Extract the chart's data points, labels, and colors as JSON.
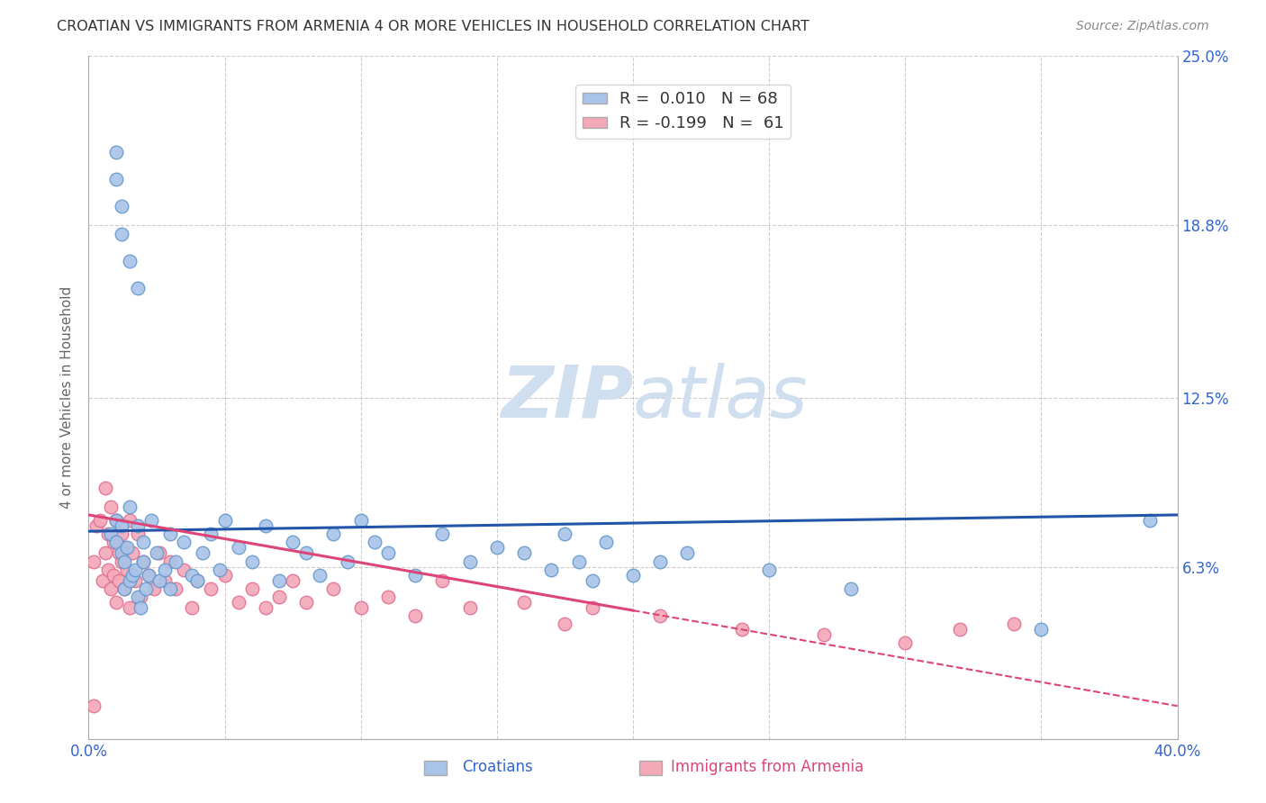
{
  "title": "CROATIAN VS IMMIGRANTS FROM ARMENIA 4 OR MORE VEHICLES IN HOUSEHOLD CORRELATION CHART",
  "source": "Source: ZipAtlas.com",
  "ylabel": "4 or more Vehicles in Household",
  "xlim": [
    0.0,
    0.4
  ],
  "ylim": [
    0.0,
    0.25
  ],
  "blue_color": "#a8c4e8",
  "blue_edge_color": "#6699cc",
  "pink_color": "#f4a8b8",
  "pink_edge_color": "#e07090",
  "blue_line_color": "#2255aa",
  "pink_line_color": "#dd4477",
  "background_color": "#ffffff",
  "grid_color": "#cccccc",
  "watermark_color": "#d0dff0",
  "title_color": "#333333",
  "axis_label_color": "#3366cc",
  "ylabel_color": "#666666",
  "source_color": "#888888",
  "ytick_vals": [
    0.0,
    0.063,
    0.125,
    0.188,
    0.25
  ],
  "ytick_labels": [
    "",
    "6.3%",
    "12.5%",
    "18.8%",
    "25.0%"
  ],
  "blue_r": 0.01,
  "blue_n": 68,
  "pink_r": -0.199,
  "pink_n": 61,
  "croatians_x": [
    0.008,
    0.01,
    0.01,
    0.012,
    0.012,
    0.013,
    0.013,
    0.014,
    0.015,
    0.015,
    0.016,
    0.017,
    0.018,
    0.018,
    0.019,
    0.02,
    0.02,
    0.021,
    0.022,
    0.023,
    0.025,
    0.026,
    0.028,
    0.03,
    0.03,
    0.032,
    0.035,
    0.038,
    0.04,
    0.042,
    0.045,
    0.048,
    0.05,
    0.055,
    0.06,
    0.065,
    0.07,
    0.075,
    0.08,
    0.085,
    0.09,
    0.095,
    0.1,
    0.105,
    0.11,
    0.12,
    0.13,
    0.14,
    0.15,
    0.16,
    0.17,
    0.175,
    0.18,
    0.185,
    0.19,
    0.2,
    0.21,
    0.22,
    0.25,
    0.28,
    0.01,
    0.01,
    0.012,
    0.012,
    0.015,
    0.018,
    0.35,
    0.39
  ],
  "croatians_y": [
    0.075,
    0.072,
    0.08,
    0.078,
    0.068,
    0.065,
    0.055,
    0.07,
    0.058,
    0.085,
    0.06,
    0.062,
    0.052,
    0.078,
    0.048,
    0.072,
    0.065,
    0.055,
    0.06,
    0.08,
    0.068,
    0.058,
    0.062,
    0.075,
    0.055,
    0.065,
    0.072,
    0.06,
    0.058,
    0.068,
    0.075,
    0.062,
    0.08,
    0.07,
    0.065,
    0.078,
    0.058,
    0.072,
    0.068,
    0.06,
    0.075,
    0.065,
    0.08,
    0.072,
    0.068,
    0.06,
    0.075,
    0.065,
    0.07,
    0.068,
    0.062,
    0.075,
    0.065,
    0.058,
    0.072,
    0.06,
    0.065,
    0.068,
    0.062,
    0.055,
    0.215,
    0.205,
    0.195,
    0.185,
    0.175,
    0.165,
    0.04,
    0.08
  ],
  "armenia_x": [
    0.002,
    0.003,
    0.004,
    0.005,
    0.006,
    0.006,
    0.007,
    0.007,
    0.008,
    0.008,
    0.009,
    0.009,
    0.01,
    0.01,
    0.011,
    0.011,
    0.012,
    0.012,
    0.013,
    0.013,
    0.014,
    0.015,
    0.015,
    0.016,
    0.017,
    0.018,
    0.019,
    0.02,
    0.022,
    0.024,
    0.026,
    0.028,
    0.03,
    0.032,
    0.035,
    0.038,
    0.04,
    0.045,
    0.05,
    0.055,
    0.06,
    0.065,
    0.07,
    0.075,
    0.08,
    0.09,
    0.1,
    0.11,
    0.12,
    0.13,
    0.14,
    0.16,
    0.175,
    0.185,
    0.21,
    0.24,
    0.27,
    0.3,
    0.32,
    0.34,
    0.002
  ],
  "armenia_y": [
    0.065,
    0.078,
    0.08,
    0.058,
    0.068,
    0.092,
    0.062,
    0.075,
    0.055,
    0.085,
    0.06,
    0.072,
    0.05,
    0.08,
    0.068,
    0.058,
    0.065,
    0.075,
    0.055,
    0.07,
    0.062,
    0.048,
    0.08,
    0.068,
    0.058,
    0.075,
    0.052,
    0.065,
    0.06,
    0.055,
    0.068,
    0.058,
    0.065,
    0.055,
    0.062,
    0.048,
    0.058,
    0.055,
    0.06,
    0.05,
    0.055,
    0.048,
    0.052,
    0.058,
    0.05,
    0.055,
    0.048,
    0.052,
    0.045,
    0.058,
    0.048,
    0.05,
    0.042,
    0.048,
    0.045,
    0.04,
    0.038,
    0.035,
    0.04,
    0.042,
    0.012
  ]
}
